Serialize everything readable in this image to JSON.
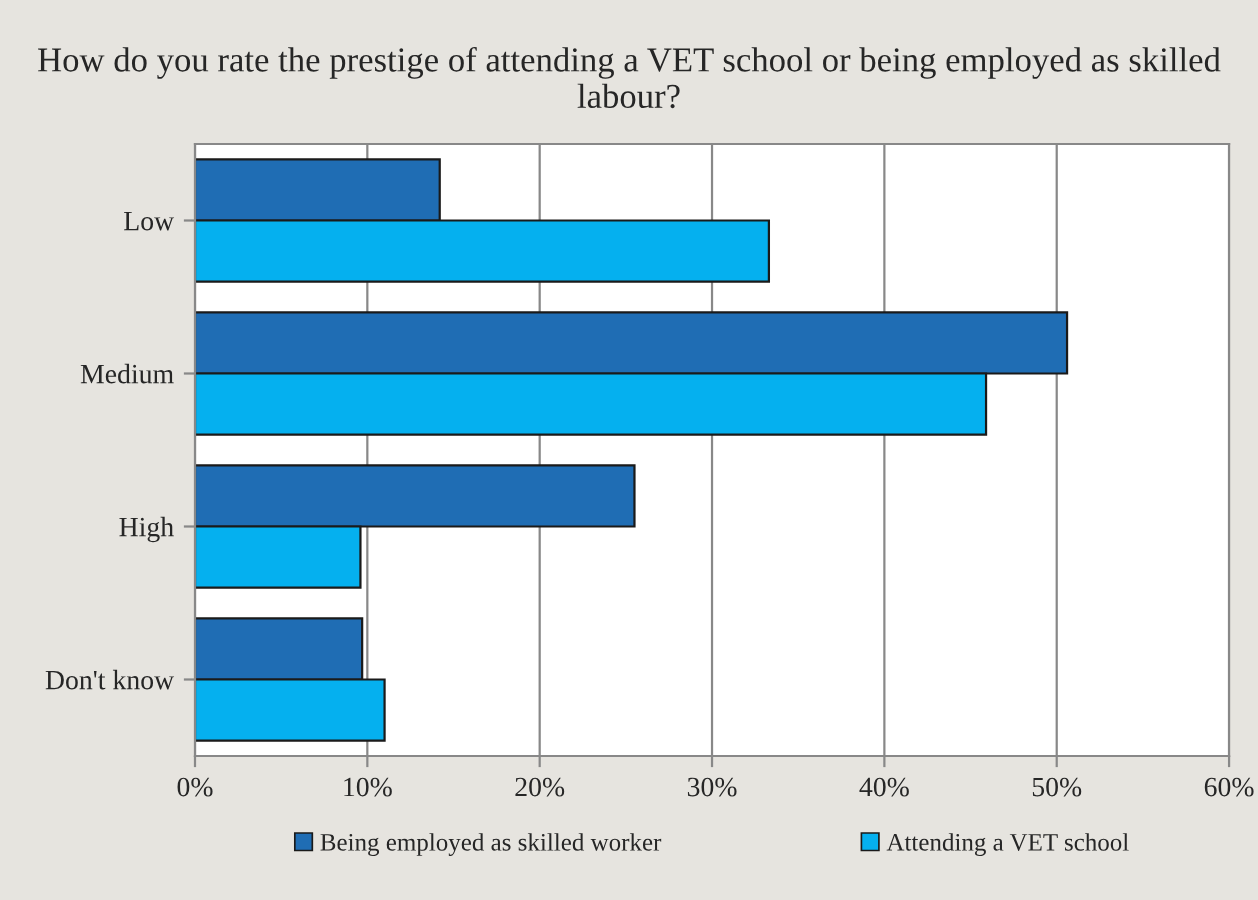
{
  "chart_data": {
    "type": "bar",
    "orientation": "horizontal",
    "title": "How do you rate the prestige of attending a VET school or being employed as skilled labour?",
    "categories": [
      "Low",
      "Medium",
      "High",
      "Don't know"
    ],
    "series": [
      {
        "name": "Being employed as skilled worker",
        "color": "#1f6db4",
        "values": [
          14.2,
          50.6,
          25.5,
          9.7
        ]
      },
      {
        "name": "Attending a VET school",
        "color": "#05b0ef",
        "values": [
          33.3,
          45.9,
          9.6,
          11.0
        ]
      }
    ],
    "xlim": [
      0,
      60
    ],
    "xticks": [
      {
        "value": 0,
        "label": "0%"
      },
      {
        "value": 10,
        "label": "10%"
      },
      {
        "value": 20,
        "label": "20%"
      },
      {
        "value": 30,
        "label": "30%"
      },
      {
        "value": 40,
        "label": "40%"
      },
      {
        "value": 50,
        "label": "50%"
      },
      {
        "value": 60,
        "label": "60%"
      }
    ],
    "grid": "x",
    "legend": "bottom"
  }
}
